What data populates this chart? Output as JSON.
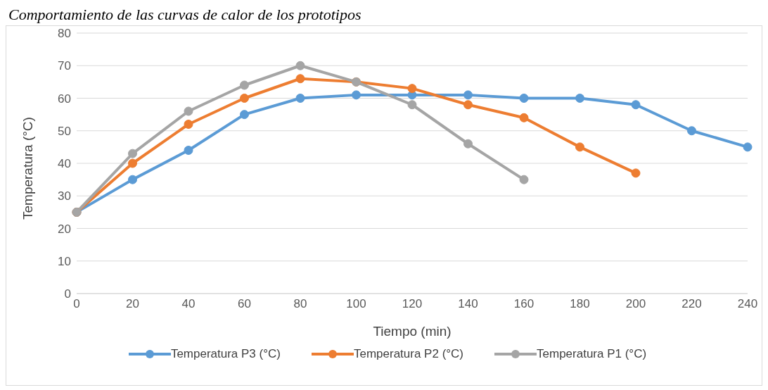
{
  "chart_data": {
    "type": "line",
    "title": "Comportamiento de las curvas de calor de los prototipos",
    "xlabel": "Tiempo (min)",
    "ylabel": "Temperatura (°C)",
    "categories": [
      "0",
      "20",
      "40",
      "60",
      "80",
      "100",
      "120",
      "140",
      "160",
      "180",
      "200",
      "220",
      "240"
    ],
    "series": [
      {
        "name": "Temperatura P3 (°C)",
        "color": "#5b9bd5",
        "values": [
          25,
          35,
          44,
          55,
          60,
          61,
          61,
          61,
          60,
          60,
          58,
          50,
          45
        ]
      },
      {
        "name": "Temperatura P2 (°C)",
        "color": "#ed7d31",
        "values": [
          25,
          40,
          52,
          60,
          66,
          65,
          63,
          58,
          54,
          45,
          37,
          null,
          null
        ]
      },
      {
        "name": "Temperatura P1 (°C)",
        "color": "#a5a5a5",
        "values": [
          25,
          43,
          56,
          64,
          70,
          65,
          58,
          46,
          35,
          null,
          null,
          null,
          null
        ]
      }
    ],
    "ylim": [
      0,
      80
    ],
    "yticks": [
      0,
      10,
      20,
      30,
      40,
      50,
      60,
      70,
      80
    ],
    "grid": "y",
    "legend": "bottom",
    "marker": "circle",
    "line_style": "solid"
  }
}
